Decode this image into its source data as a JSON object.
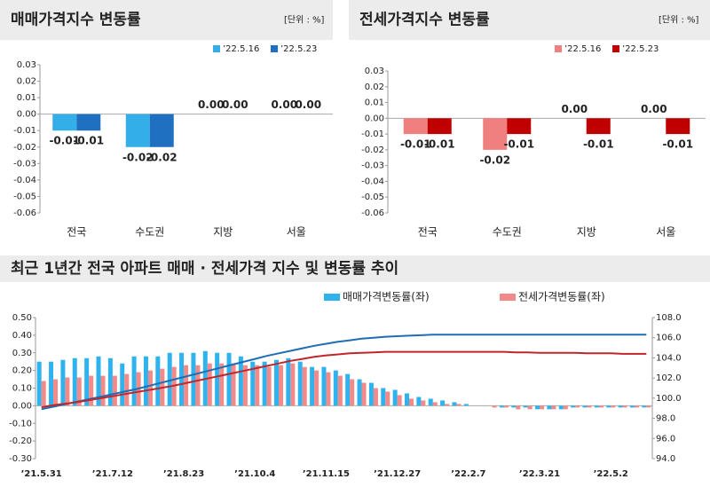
{
  "chart_data": [
    {
      "type": "bar",
      "title": "매매가격지수 변동률",
      "unit": "[단위 : %]",
      "categories": [
        "전국",
        "수도권",
        "지방",
        "서울"
      ],
      "series": [
        {
          "name": "’22.5.16",
          "color": "#33aee8",
          "values": [
            -0.01,
            -0.02,
            0,
            0
          ],
          "value_labels": [
            "-0.01",
            "-0.02",
            "0.00",
            "0.00"
          ]
        },
        {
          "name": "’22.5.23",
          "color": "#1f70c1",
          "values": [
            -0.01,
            -0.02,
            0,
            0
          ],
          "value_labels": [
            "-0.01",
            "-0.02",
            "0.00",
            "0.00"
          ]
        }
      ],
      "ylim": [
        -0.06,
        0.03
      ],
      "yticks": [
        0.03,
        0.02,
        0.01,
        {
          "value": 0,
          "label": "0.00"
        },
        -0.01,
        -0.02,
        -0.03,
        -0.04,
        -0.05,
        -0.06
      ]
    },
    {
      "type": "bar",
      "title": "전세가격지수 변동률",
      "unit": "[단위 : %]",
      "categories": [
        "전국",
        "수도권",
        "지방",
        "서울"
      ],
      "series": [
        {
          "name": "’22.5.16",
          "color": "#f07f7f",
          "values": [
            -0.01,
            -0.02,
            0,
            0
          ],
          "value_labels": [
            "-0.01",
            "-0.02",
            "0.00",
            "0.00"
          ]
        },
        {
          "name": "’22.5.23",
          "color": "#c00000",
          "values": [
            -0.01,
            -0.01,
            -0.01,
            -0.01
          ],
          "value_labels": [
            "-0.01",
            "-0.01",
            "-0.01",
            "-0.01"
          ]
        }
      ],
      "ylim": [
        -0.06,
        0.03
      ],
      "yticks": [
        0.03,
        0.02,
        0.01,
        {
          "value": 0,
          "label": "0.00"
        },
        -0.01,
        -0.02,
        -0.03,
        -0.04,
        -0.05,
        -0.06
      ]
    },
    {
      "type": "combo",
      "title": "최근 1년간 전국 아파트 매매 · 전세가격 지수 및 변동률 추이",
      "categories": [
        "’21.5.31",
        null,
        null,
        null,
        null,
        null,
        "’21.7.12",
        null,
        null,
        null,
        null,
        null,
        "’21.8.23",
        null,
        null,
        null,
        null,
        null,
        "’21.10.4",
        null,
        null,
        null,
        null,
        null,
        "’21.11.15",
        null,
        null,
        null,
        null,
        null,
        "’21.12.27",
        null,
        null,
        null,
        null,
        null,
        "’22.2.7",
        null,
        null,
        null,
        null,
        null,
        "’22.3.21",
        null,
        null,
        null,
        null,
        null,
        "’22.5.2",
        null,
        null,
        null
      ],
      "series": [
        {
          "name": "매매가격변동률(좌)",
          "type": "bar",
          "color": "#2fb3ee",
          "values": [
            0.25,
            0.25,
            0.26,
            0.27,
            0.27,
            0.28,
            0.27,
            0.24,
            0.28,
            0.28,
            0.28,
            0.3,
            0.3,
            0.3,
            0.31,
            0.3,
            0.3,
            0.28,
            0.25,
            0.25,
            0.26,
            0.27,
            0.25,
            0.22,
            0.22,
            0.2,
            0.18,
            0.15,
            0.13,
            0.1,
            0.09,
            0.07,
            0.05,
            0.04,
            0.03,
            0.02,
            0.01,
            0,
            0,
            -0.01,
            -0.01,
            -0.01,
            -0.02,
            -0.02,
            -0.02,
            -0.01,
            -0.01,
            -0.01,
            -0.01,
            -0.01,
            -0.01,
            -0.01
          ]
        },
        {
          "name": "전세가격변동률(좌)",
          "type": "bar",
          "color": "#f28a8a",
          "values": [
            0.14,
            0.15,
            0.16,
            0.16,
            0.17,
            0.17,
            0.17,
            0.18,
            0.19,
            0.2,
            0.21,
            0.22,
            0.23,
            0.23,
            0.24,
            0.24,
            0.24,
            0.23,
            0.23,
            0.22,
            0.23,
            0.24,
            0.22,
            0.2,
            0.19,
            0.17,
            0.15,
            0.13,
            0.1,
            0.08,
            0.06,
            0.04,
            0.03,
            0.02,
            0.01,
            0.01,
            0,
            0,
            -0.01,
            -0.01,
            -0.02,
            -0.02,
            -0.02,
            -0.02,
            -0.02,
            -0.01,
            -0.01,
            -0.01,
            -0.01,
            -0.01,
            -0.01,
            -0.01
          ]
        },
        {
          "type": "line",
          "axis": "y2",
          "color": "#1f6db3",
          "values": [
            98.9,
            99.15,
            99.4,
            99.65,
            99.9,
            100.15,
            100.4,
            100.65,
            100.9,
            101.2,
            101.5,
            101.8,
            102.1,
            102.4,
            102.7,
            103.0,
            103.3,
            103.6,
            103.9,
            104.2,
            104.45,
            104.7,
            104.95,
            105.2,
            105.4,
            105.6,
            105.75,
            105.9,
            106.0,
            106.1,
            106.15,
            106.2,
            106.25,
            106.3,
            106.3,
            106.3,
            106.3,
            106.3,
            106.3,
            106.3,
            106.3,
            106.3,
            106.3,
            106.3,
            106.3,
            106.3,
            106.3,
            106.3,
            106.3,
            106.3,
            106.3,
            106.3
          ]
        },
        {
          "type": "line",
          "axis": "y2",
          "color": "#c0262c",
          "values": [
            99.1,
            99.3,
            99.45,
            99.6,
            99.8,
            100.0,
            100.2,
            100.4,
            100.6,
            100.8,
            101.0,
            101.2,
            101.45,
            101.7,
            101.95,
            102.2,
            102.45,
            102.7,
            102.95,
            103.2,
            103.45,
            103.7,
            103.9,
            104.1,
            104.25,
            104.35,
            104.45,
            104.5,
            104.55,
            104.6,
            104.6,
            104.6,
            104.6,
            104.6,
            104.6,
            104.6,
            104.6,
            104.6,
            104.6,
            104.6,
            104.55,
            104.55,
            104.5,
            104.5,
            104.5,
            104.5,
            104.45,
            104.45,
            104.45,
            104.4,
            104.4,
            104.4
          ]
        }
      ],
      "ylim": [
        -0.3,
        0.5
      ],
      "yticks": [
        {
          "value": 0.5,
          "label": "0.50"
        },
        {
          "value": 0.4,
          "label": "0.40"
        },
        {
          "value": 0.3,
          "label": "0.30"
        },
        {
          "value": 0.2,
          "label": "0.20"
        },
        {
          "value": 0.1,
          "label": "0.10"
        },
        {
          "value": 0,
          "label": "0.00"
        },
        {
          "value": -0.1,
          "label": "-0.10"
        },
        {
          "value": -0.2,
          "label": "-0.20"
        },
        {
          "value": -0.3,
          "label": "-0.30"
        }
      ],
      "y2lim": [
        94,
        108
      ],
      "y2ticks": [
        {
          "value": 108,
          "label": "108.0"
        },
        {
          "value": 106,
          "label": "106.0"
        },
        {
          "value": 104,
          "label": "104.0"
        },
        {
          "value": 102,
          "label": "102.0"
        },
        {
          "value": 100,
          "label": "100.0"
        },
        {
          "value": 98,
          "label": "98.0"
        },
        {
          "value": 96,
          "label": "96.0"
        },
        {
          "value": 94,
          "label": "94.0"
        }
      ]
    }
  ]
}
